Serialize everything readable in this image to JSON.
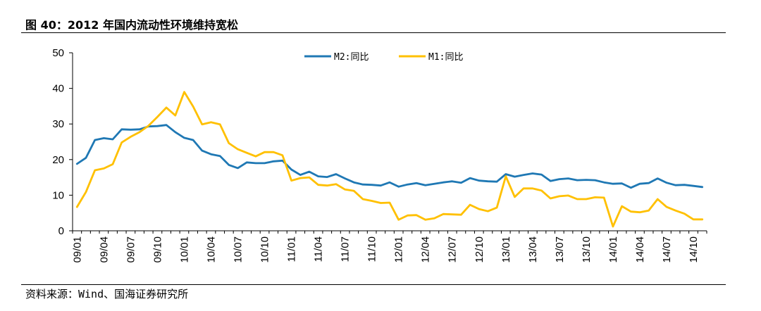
{
  "header": {
    "title": "图 40：2012 年国内流动性环境维持宽松"
  },
  "footer": {
    "source": "资料来源：Wind、国海证券研究所"
  },
  "colors": {
    "m2": "#1f78b4",
    "m1": "#ffc000"
  },
  "chart_data": {
    "type": "line",
    "x": [
      "09/01",
      "09/02",
      "09/03",
      "09/04",
      "09/05",
      "09/06",
      "09/07",
      "09/08",
      "09/09",
      "09/10",
      "09/11",
      "09/12",
      "10/01",
      "10/02",
      "10/03",
      "10/04",
      "10/05",
      "10/06",
      "10/07",
      "10/08",
      "10/09",
      "10/10",
      "10/11",
      "10/12",
      "11/01",
      "11/02",
      "11/03",
      "11/04",
      "11/05",
      "11/06",
      "11/07",
      "11/08",
      "11/09",
      "11/10",
      "11/11",
      "11/12",
      "12/01",
      "12/02",
      "12/03",
      "12/04",
      "12/05",
      "12/06",
      "12/07",
      "12/08",
      "12/09",
      "12/10",
      "12/11",
      "12/12",
      "13/01",
      "13/02",
      "13/03",
      "13/04",
      "13/05",
      "13/06",
      "13/07",
      "13/08",
      "13/09",
      "13/10",
      "13/11",
      "13/12",
      "14/01",
      "14/02",
      "14/03",
      "14/04",
      "14/05",
      "14/06",
      "14/07",
      "14/08",
      "14/09",
      "14/10",
      "14/11"
    ],
    "x_tick_labels": [
      "09/01",
      "09/04",
      "09/07",
      "09/10",
      "10/01",
      "10/04",
      "10/07",
      "10/10",
      "11/01",
      "11/04",
      "11/07",
      "11/10",
      "12/01",
      "12/04",
      "12/07",
      "12/10",
      "13/01",
      "13/04",
      "13/07",
      "13/10",
      "14/01",
      "14/04",
      "14/07",
      "14/10"
    ],
    "ylim": [
      0,
      50
    ],
    "y_ticks": [
      0,
      10,
      20,
      30,
      40,
      50
    ],
    "legend_position": "top-center",
    "grid": false,
    "series": [
      {
        "name": "M2:同比",
        "color_key": "m2",
        "values": [
          18.8,
          20.5,
          25.5,
          26.0,
          25.7,
          28.5,
          28.4,
          28.5,
          29.3,
          29.4,
          29.7,
          27.7,
          26.1,
          25.5,
          22.5,
          21.5,
          21.0,
          18.5,
          17.6,
          19.2,
          19.0,
          19.0,
          19.5,
          19.7,
          17.2,
          15.7,
          16.6,
          15.3,
          15.1,
          15.9,
          14.7,
          13.6,
          13.0,
          12.9,
          12.7,
          13.6,
          12.4,
          13.0,
          13.4,
          12.8,
          13.2,
          13.6,
          13.9,
          13.5,
          14.8,
          14.1,
          13.9,
          13.8,
          15.9,
          15.2,
          15.7,
          16.1,
          15.8,
          14.0,
          14.5,
          14.7,
          14.2,
          14.3,
          14.2,
          13.6,
          13.2,
          13.3,
          12.1,
          13.2,
          13.4,
          14.7,
          13.5,
          12.8,
          12.9,
          12.6,
          12.3
        ]
      },
      {
        "name": "M1:同比",
        "color_key": "m1",
        "values": [
          6.7,
          10.9,
          17.0,
          17.5,
          18.7,
          24.8,
          26.4,
          27.7,
          29.5,
          32.0,
          34.6,
          32.4,
          39.0,
          34.9,
          29.9,
          30.5,
          29.9,
          24.6,
          22.9,
          21.9,
          20.9,
          22.1,
          22.1,
          21.2,
          14.1,
          14.8,
          15.0,
          12.9,
          12.7,
          13.1,
          11.6,
          11.2,
          8.9,
          8.4,
          7.8,
          7.9,
          3.1,
          4.3,
          4.4,
          3.1,
          3.5,
          4.7,
          4.6,
          4.5,
          7.3,
          6.1,
          5.5,
          6.5,
          15.3,
          9.5,
          11.9,
          11.9,
          11.3,
          9.1,
          9.7,
          9.9,
          8.9,
          8.9,
          9.4,
          9.3,
          1.2,
          6.9,
          5.4,
          5.2,
          5.7,
          8.9,
          6.7,
          5.7,
          4.8,
          3.2,
          3.2
        ]
      }
    ]
  }
}
